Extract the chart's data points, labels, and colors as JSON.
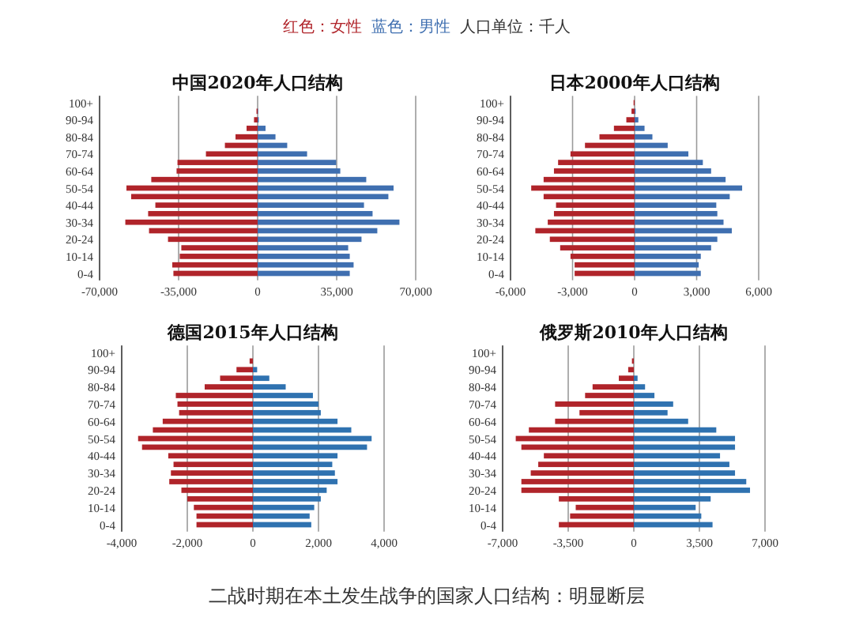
{
  "chart_data": [
    {
      "type": "bar",
      "orientation": "horizontal",
      "title": "中国2020年人口结构",
      "categories": [
        "100+",
        null,
        "90-94",
        null,
        "80-84",
        null,
        "70-74",
        null,
        "60-64",
        null,
        "50-54",
        null,
        "40-44",
        null,
        "30-34",
        null,
        "20-24",
        null,
        "10-14",
        null,
        "0-4"
      ],
      "series": [
        {
          "color": "#b0242a",
          "values": [
            0,
            -500,
            -1600,
            -4900,
            -9800,
            -14500,
            -22900,
            -35500,
            -35900,
            -47100,
            -58100,
            -56000,
            -45300,
            -48500,
            -58600,
            -48100,
            -39700,
            -33800,
            -34500,
            -37800,
            -37300
          ]
        },
        {
          "color": "#3f6fb0",
          "values": [
            0,
            200,
            500,
            3500,
            7900,
            13100,
            21900,
            34800,
            36600,
            48100,
            60200,
            57900,
            47100,
            50900,
            62800,
            53000,
            46000,
            40100,
            40800,
            42500,
            40800
          ]
        }
      ],
      "xlim": [
        -70000,
        70000
      ],
      "xticks": [
        {
          "value": -70000,
          "label": "-70,000"
        },
        {
          "value": -35000,
          "label": "-35,000"
        },
        {
          "value": 0,
          "label": "0"
        },
        {
          "value": 35000,
          "label": "35,000"
        },
        {
          "value": 70000,
          "label": "70,000"
        }
      ],
      "grid": "x",
      "stacked": true,
      "annotations": [
        "红色：女性",
        "蓝色：男性",
        "人口单位：千人"
      ]
    },
    {
      "type": "bar",
      "orientation": "horizontal",
      "title": "日本2000年人口结构",
      "categories": [
        "100+",
        null,
        "90-94",
        null,
        "80-84",
        null,
        "70-74",
        null,
        "60-64",
        null,
        "50-54",
        null,
        "40-44",
        null,
        "30-34",
        null,
        "20-24",
        null,
        "10-14",
        null,
        "0-4"
      ],
      "series": [
        {
          "color": "#b0242a",
          "values": [
            -50,
            -150,
            -400,
            -1000,
            -1700,
            -2400,
            -3100,
            -3700,
            -3900,
            -4400,
            -5000,
            -4400,
            -3800,
            -3900,
            -4200,
            -4800,
            -4100,
            -3600,
            -3100,
            -2900,
            -2900
          ]
        },
        {
          "color": "#3f6fb0",
          "values": [
            0,
            50,
            180,
            480,
            860,
            1600,
            2600,
            3300,
            3700,
            4400,
            5200,
            4600,
            3950,
            4000,
            4300,
            4700,
            4000,
            3700,
            3200,
            3100,
            3200
          ]
        }
      ],
      "xlim": [
        -6000,
        6000
      ],
      "xticks": [
        {
          "value": -6000,
          "label": "-6,000"
        },
        {
          "value": -3000,
          "label": "-3,000"
        },
        {
          "value": 0,
          "label": "0"
        },
        {
          "value": 3000,
          "label": "3,000"
        },
        {
          "value": 6000,
          "label": "6,000"
        }
      ],
      "grid": "x",
      "stacked": true
    },
    {
      "type": "bar",
      "orientation": "horizontal",
      "title": "德国2015年人口结构",
      "categories": [
        "100+",
        null,
        "90-94",
        null,
        "80-84",
        null,
        "70-74",
        null,
        "60-64",
        null,
        "50-54",
        null,
        "40-44",
        null,
        "30-34",
        null,
        "20-24",
        null,
        "10-14",
        null,
        "0-4"
      ],
      "series": [
        {
          "color": "#b0242a",
          "values": [
            0,
            -100,
            -500,
            -1000,
            -1470,
            -2350,
            -2300,
            -2250,
            -2750,
            -3050,
            -3500,
            -3380,
            -2580,
            -2420,
            -2500,
            -2550,
            -2180,
            -2000,
            -1800,
            -1720,
            -1720
          ]
        },
        {
          "color": "#2f72b0",
          "values": [
            0,
            0,
            130,
            500,
            1000,
            1830,
            2000,
            2070,
            2580,
            3000,
            3620,
            3480,
            2580,
            2420,
            2500,
            2580,
            2250,
            2070,
            1870,
            1730,
            1780
          ]
        }
      ],
      "xlim": [
        -4000,
        4000
      ],
      "xticks": [
        {
          "value": -4000,
          "label": "-4,000"
        },
        {
          "value": -2000,
          "label": "-2,000"
        },
        {
          "value": 0,
          "label": "0"
        },
        {
          "value": 2000,
          "label": "2,000"
        },
        {
          "value": 4000,
          "label": "4,000"
        }
      ],
      "grid": "x",
      "stacked": true
    },
    {
      "type": "bar",
      "orientation": "horizontal",
      "title": "俄罗斯2010年人口结构",
      "categories": [
        "100+",
        null,
        "90-94",
        null,
        "80-84",
        null,
        "70-74",
        null,
        "60-64",
        null,
        "50-54",
        null,
        "40-44",
        null,
        "30-34",
        null,
        "20-24",
        null,
        "10-14",
        null,
        "0-4"
      ],
      "series": [
        {
          "color": "#b0242a",
          "values": [
            0,
            -100,
            -300,
            -800,
            -2200,
            -2600,
            -4200,
            -2900,
            -4200,
            -5600,
            -6300,
            -6000,
            -4800,
            -5100,
            -5500,
            -6000,
            -6000,
            -4000,
            -3100,
            -3400,
            -4000
          ]
        },
        {
          "color": "#2f72b0",
          "values": [
            0,
            0,
            0,
            200,
            600,
            1100,
            2100,
            1800,
            2900,
            4400,
            5400,
            5400,
            4600,
            5100,
            5400,
            6000,
            6200,
            4100,
            3300,
            3600,
            4200
          ]
        }
      ],
      "xlim": [
        -7000,
        7000
      ],
      "xticks": [
        {
          "value": -7000,
          "label": "-7,000"
        },
        {
          "value": -3500,
          "label": "-3,500"
        },
        {
          "value": 0,
          "label": "0"
        },
        {
          "value": 3500,
          "label": "3,500"
        },
        {
          "value": 7000,
          "label": "7,000"
        }
      ],
      "grid": "x",
      "stacked": true,
      "annotations": [
        "二战时期在本土发生战争的国家人口结构：明显断层"
      ]
    }
  ]
}
